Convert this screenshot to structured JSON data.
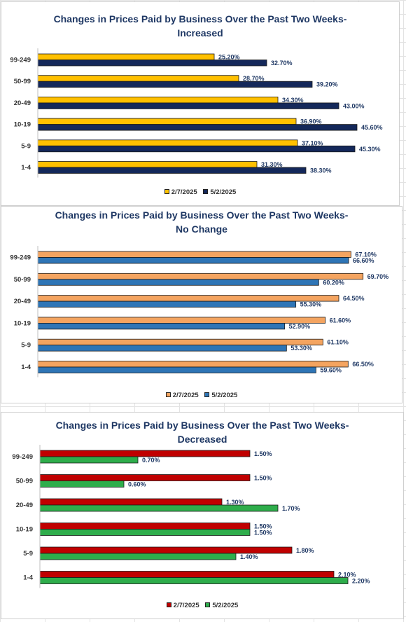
{
  "chart_data": [
    {
      "type": "bar",
      "orientation": "horizontal",
      "title_line1": "Changes in Prices Paid by Business Over the Past Two Weeks-",
      "title_line2": "Increased",
      "categories": [
        "99-249",
        "50-99",
        "20-49",
        "10-19",
        "5-9",
        "1-4"
      ],
      "series": [
        {
          "name": "2/7/2025",
          "color": "#FFC000",
          "values": [
            25.2,
            28.7,
            34.3,
            36.9,
            37.1,
            31.3
          ],
          "labels": [
            "25.20%",
            "28.70%",
            "34.30%",
            "36.90%",
            "37.10%",
            "31.30%"
          ]
        },
        {
          "name": "5/2/2025",
          "color": "#14285A",
          "values": [
            32.7,
            39.2,
            43.0,
            45.6,
            45.3,
            38.3
          ],
          "labels": [
            "32.70%",
            "39.20%",
            "43.00%",
            "45.60%",
            "45.30%",
            "38.30%"
          ]
        }
      ],
      "xlim": [
        0,
        50
      ],
      "grid": false,
      "legend_position": "bottom"
    },
    {
      "type": "bar",
      "orientation": "horizontal",
      "title_line1": "Changes in Prices Paid by Business Over the Past Two Weeks-",
      "title_line2": "No Change",
      "categories": [
        "99-249",
        "50-99",
        "20-49",
        "10-19",
        "5-9",
        "1-4"
      ],
      "series": [
        {
          "name": "2/7/2025",
          "color": "#F4A460",
          "values": [
            67.1,
            69.7,
            64.5,
            61.6,
            61.1,
            66.5
          ],
          "labels": [
            "67.10%",
            "69.70%",
            "64.50%",
            "61.60%",
            "61.10%",
            "66.50%"
          ]
        },
        {
          "name": "5/2/2025",
          "color": "#2E75B6",
          "values": [
            66.6,
            60.2,
            55.3,
            52.9,
            53.3,
            59.6
          ],
          "labels": [
            "66.60%",
            "60.20%",
            "55.30%",
            "52.90%",
            "53.30%",
            "59.60%"
          ]
        }
      ],
      "xlim": [
        0,
        75
      ],
      "grid": false,
      "legend_position": "bottom"
    },
    {
      "type": "bar",
      "orientation": "horizontal",
      "title_line1": "Changes in Prices Paid by Business Over the Past Two Weeks-",
      "title_line2": "Decreased",
      "categories": [
        "99-249",
        "50-99",
        "20-49",
        "10-19",
        "5-9",
        "1-4"
      ],
      "series": [
        {
          "name": "2/7/2025",
          "color": "#C00000",
          "values": [
            1.5,
            1.5,
            1.3,
            1.5,
            1.8,
            2.1
          ],
          "labels": [
            "1.50%",
            "1.50%",
            "1.30%",
            "1.50%",
            "1.80%",
            "2.10%"
          ]
        },
        {
          "name": "5/2/2025",
          "color": "#2EAD4B",
          "values": [
            0.7,
            0.6,
            1.7,
            1.5,
            1.4,
            2.2
          ],
          "labels": [
            "0.70%",
            "0.60%",
            "1.70%",
            "1.50%",
            "1.40%",
            "2.20%"
          ]
        }
      ],
      "xlim": [
        0,
        2.5
      ],
      "grid": false,
      "legend_position": "bottom"
    }
  ]
}
